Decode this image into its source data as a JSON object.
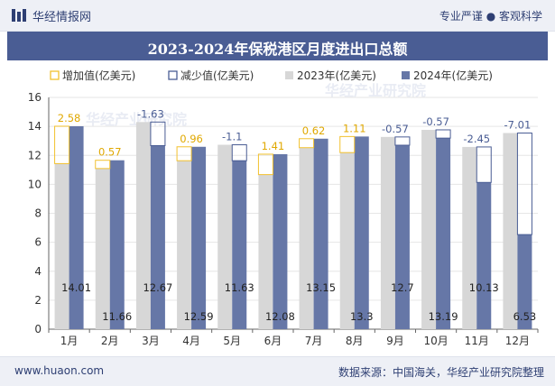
{
  "header": {
    "brand": "华经情报网",
    "slogan": "专业严谨 ● 客观科学"
  },
  "footer": {
    "site": "www.huaon.com",
    "source": "数据来源：中国海关，华经产业研究院整理"
  },
  "colors": {
    "series_2023": "#d7d7d7",
    "series_2024": "#6677a7",
    "increase": "#f2c12e",
    "decrease": "#4a5d94",
    "header_bg": "#4a5d94"
  },
  "chart_data": {
    "type": "bar",
    "title": "2023-2024年保税港区月度进出口总额",
    "categories": [
      "1月",
      "2月",
      "3月",
      "4月",
      "5月",
      "6月",
      "7月",
      "8月",
      "9月",
      "10月",
      "11月",
      "12月"
    ],
    "series": [
      {
        "name": "2023年(亿美元)",
        "values": [
          11.43,
          11.09,
          14.3,
          11.63,
          12.73,
          10.67,
          12.53,
          12.19,
          13.27,
          13.76,
          12.58,
          13.54
        ]
      },
      {
        "name": "2024年(亿美元)",
        "values": [
          14.01,
          11.66,
          12.67,
          12.59,
          11.63,
          12.08,
          13.15,
          13.3,
          12.7,
          13.19,
          10.13,
          6.53
        ]
      }
    ],
    "change": {
      "increase_name": "增加值(亿美元)",
      "decrease_name": "减少值(亿美元)",
      "labels": [
        "2.58",
        "0.57",
        "-1.63",
        "0.96",
        "-1.1",
        "1.41",
        "0.62",
        "1.11",
        "-0.57",
        "-0.57",
        "-2.45",
        "-7.01"
      ]
    },
    "yaxis": {
      "min": 0,
      "max": 16,
      "ticks": [
        "0",
        "2",
        "4",
        "6",
        "8",
        "10",
        "12",
        "14",
        "16"
      ]
    },
    "ylim": [
      0,
      16
    ],
    "grid": true,
    "legend": "top"
  }
}
